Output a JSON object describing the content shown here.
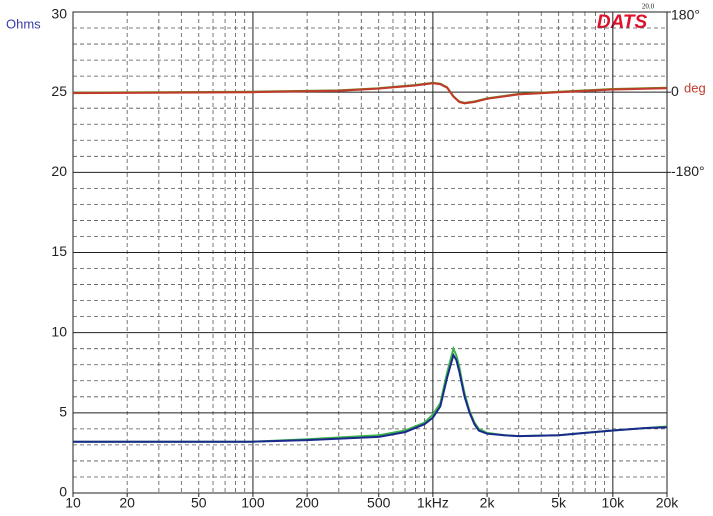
{
  "chart_data": {
    "type": "line",
    "y_label": "Ohms",
    "y2_label": "deg",
    "logo": "DATS",
    "logo_version": "20.0",
    "xlog": true,
    "xlim": [
      10,
      20000
    ],
    "xticks": [
      10,
      20,
      50,
      100,
      200,
      500,
      {
        "value": 1000,
        "label": "1kHz"
      },
      {
        "value": 2000,
        "label": "2k"
      },
      {
        "value": 5000,
        "label": "5k"
      },
      {
        "value": 10000,
        "label": "10k"
      },
      {
        "value": 20000,
        "label": "20k"
      }
    ],
    "xgrid": [
      20,
      30,
      40,
      50,
      60,
      70,
      80,
      90,
      100,
      200,
      300,
      400,
      500,
      600,
      700,
      800,
      900,
      1000,
      2000,
      3000,
      4000,
      5000,
      6000,
      7000,
      8000,
      9000,
      10000
    ],
    "xgrid_major": [
      100,
      1000,
      10000
    ],
    "ylim": [
      0,
      30
    ],
    "yticks": [
      0,
      5,
      10,
      15,
      20,
      25,
      30
    ],
    "ygrid": [
      1,
      2,
      3,
      4,
      6,
      7,
      8,
      9,
      11,
      12,
      13,
      14,
      16,
      17,
      18,
      19,
      21,
      22,
      23,
      24,
      26,
      27,
      28,
      29
    ],
    "y2lim": [
      -900,
      180
    ],
    "y2ticks": [
      {
        "value": 180,
        "label": "180°"
      },
      0,
      {
        "value": -180,
        "label": "-180°"
      }
    ],
    "series": [
      {
        "color": "#3cb44b",
        "axis": "y",
        "x": [
          10,
          100,
          200,
          500,
          700,
          900,
          1000,
          1100,
          1200,
          1300,
          1350,
          1400,
          1450,
          1500,
          1600,
          1700,
          1800,
          2000,
          2500,
          3000,
          5000,
          7000,
          10000,
          15000,
          20000
        ],
        "values": [
          3.2,
          3.2,
          3.35,
          3.6,
          3.9,
          4.4,
          4.9,
          5.6,
          7.5,
          9.0,
          8.6,
          7.9,
          7.0,
          6.2,
          5.1,
          4.4,
          4.0,
          3.75,
          3.6,
          3.55,
          3.6,
          3.75,
          3.9,
          4.05,
          4.15
        ]
      },
      {
        "color": "#1a2a8c",
        "axis": "y",
        "x": [
          10,
          100,
          200,
          500,
          700,
          900,
          1000,
          1100,
          1200,
          1300,
          1350,
          1400,
          1450,
          1500,
          1600,
          1700,
          1800,
          2000,
          2500,
          3000,
          5000,
          7000,
          10000,
          15000,
          20000
        ],
        "values": [
          3.2,
          3.2,
          3.3,
          3.5,
          3.8,
          4.3,
          4.7,
          5.4,
          7.2,
          8.6,
          8.3,
          7.6,
          6.8,
          6.0,
          5.0,
          4.3,
          3.9,
          3.7,
          3.6,
          3.55,
          3.6,
          3.75,
          3.9,
          4.05,
          4.1
        ]
      },
      {
        "color": "#6b8e23",
        "axis": "y2",
        "x": [
          10,
          100,
          300,
          500,
          800,
          1000,
          1100,
          1200,
          1300,
          1400,
          1500,
          1700,
          2000,
          3000,
          5000,
          10000,
          20000
        ],
        "values": [
          -1,
          1,
          4,
          9,
          16,
          21,
          19,
          11,
          -9,
          -21,
          -24,
          -21,
          -14,
          -4,
          1,
          7,
          10
        ]
      },
      {
        "color": "#c0392b",
        "axis": "y2",
        "x": [
          10,
          100,
          300,
          500,
          800,
          1000,
          1100,
          1200,
          1300,
          1400,
          1500,
          1700,
          2000,
          3000,
          5000,
          10000,
          20000
        ],
        "values": [
          -2,
          0,
          3,
          8,
          15,
          20,
          18,
          10,
          -10,
          -22,
          -25,
          -22,
          -15,
          -5,
          0,
          6,
          9
        ]
      }
    ]
  }
}
